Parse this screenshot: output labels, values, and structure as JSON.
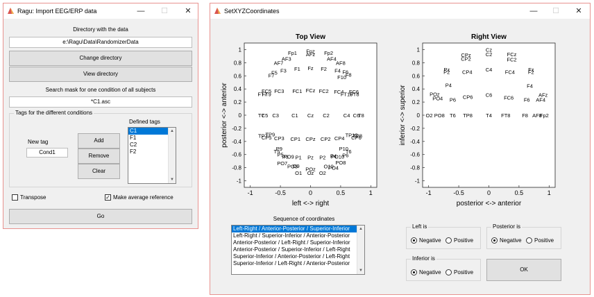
{
  "win1": {
    "title": "Ragu: Import EEG/ERP data",
    "directory_label": "Directory with the data",
    "directory_value": "e:\\Ragu\\Data\\RandomizerData",
    "change_directory": "Change directory",
    "view_directory": "View directory",
    "search_mask_label": "Search mask for one condition of all subjects",
    "search_mask_value": "*C1.asc",
    "tags_group_title": "Tags for the different conditions",
    "new_tag_label": "New tag",
    "new_tag_value": "Cond1",
    "add": "Add",
    "remove": "Remove",
    "clear": "Clear",
    "defined_tags_label": "Defined tags",
    "defined_tags": [
      "C1",
      "F1",
      "C2",
      "F2"
    ],
    "selected_tag": "C1",
    "transpose_label": "Transpose",
    "transpose_checked": false,
    "average_ref_label": "Make average reference",
    "average_ref_checked": true,
    "go": "Go"
  },
  "win2": {
    "title": "SetXYZCoordinates",
    "top_view": {
      "title": "Top View",
      "xlabel": "left <-> right",
      "ylabel": "posterior <-> anterior",
      "xticks": [
        "-1",
        "-0.5",
        "0",
        "0.5",
        "1"
      ],
      "yticks": [
        "1",
        "0.8",
        "0.6",
        "0.4",
        "0.2",
        "0",
        "-0.2",
        "-0.4",
        "-0.6",
        "-0.8",
        "-1"
      ],
      "electrodes": [
        [
          "Fp1",
          -0.3,
          0.95
        ],
        [
          "Fpz",
          0,
          0.98
        ],
        [
          "Fp2",
          0.3,
          0.95
        ],
        [
          "AFz",
          0,
          0.93
        ],
        [
          "AF7",
          -0.53,
          0.8
        ],
        [
          "AF3",
          -0.4,
          0.86
        ],
        [
          "AF4",
          0.35,
          0.86
        ],
        [
          "AF8",
          0.5,
          0.8
        ],
        [
          "F7",
          -0.65,
          0.61
        ],
        [
          "F5",
          -0.6,
          0.65
        ],
        [
          "F3",
          -0.45,
          0.68
        ],
        [
          "F1",
          -0.22,
          0.71
        ],
        [
          "Fz",
          0,
          0.72
        ],
        [
          "F2",
          0.22,
          0.71
        ],
        [
          "F4",
          0.45,
          0.68
        ],
        [
          "F6",
          0.58,
          0.66
        ],
        [
          "F8",
          0.63,
          0.62
        ],
        [
          "F10",
          0.52,
          0.58
        ],
        [
          "FC5",
          -0.73,
          0.37
        ],
        [
          "FC3",
          -0.52,
          0.37
        ],
        [
          "FC1",
          -0.22,
          0.37
        ],
        [
          "FCz",
          0,
          0.38
        ],
        [
          "FC2",
          0.22,
          0.37
        ],
        [
          "FC4",
          0.47,
          0.36
        ],
        [
          "FC6",
          0.72,
          0.36
        ],
        [
          "FT7",
          -0.8,
          0.32
        ],
        [
          "FT9",
          -0.73,
          0.32
        ],
        [
          "FT10",
          0.6,
          0.32
        ],
        [
          "FT8",
          0.73,
          0.32
        ],
        [
          "T7",
          -0.82,
          0
        ],
        [
          "C5",
          -0.76,
          0
        ],
        [
          "C3",
          -0.58,
          0
        ],
        [
          "C1",
          -0.26,
          0
        ],
        [
          "Cz",
          0,
          0
        ],
        [
          "C2",
          0.26,
          0
        ],
        [
          "C4",
          0.6,
          0
        ],
        [
          "C6",
          0.76,
          0
        ],
        [
          "T8",
          0.84,
          0
        ],
        [
          "TP7",
          -0.79,
          -0.31
        ],
        [
          "CP5",
          -0.73,
          -0.34
        ],
        [
          "TP9",
          -0.67,
          -0.29
        ],
        [
          "CP3",
          -0.52,
          -0.35
        ],
        [
          "CP1",
          -0.25,
          -0.36
        ],
        [
          "CPz",
          0,
          -0.36
        ],
        [
          "CP2",
          0.25,
          -0.36
        ],
        [
          "CP4",
          0.48,
          -0.35
        ],
        [
          "CP6",
          0.76,
          -0.34
        ],
        [
          "TP10",
          0.68,
          -0.3
        ],
        [
          "TP8",
          0.78,
          -0.31
        ],
        [
          "T5",
          -0.56,
          -0.55
        ],
        [
          "P9",
          -0.52,
          -0.51
        ],
        [
          "P5",
          -0.5,
          -0.6
        ],
        [
          "P3",
          -0.42,
          -0.63
        ],
        [
          "P1",
          -0.2,
          -0.64
        ],
        [
          "Pz",
          0,
          -0.64
        ],
        [
          "P2",
          0.2,
          -0.64
        ],
        [
          "P4",
          0.38,
          -0.62
        ],
        [
          "P6",
          0.58,
          -0.61
        ],
        [
          "T6",
          0.63,
          -0.55
        ],
        [
          "P10",
          0.55,
          -0.51
        ],
        [
          "PO9",
          -0.36,
          -0.63
        ],
        [
          "PO7",
          -0.47,
          -0.73
        ],
        [
          "PO3",
          -0.3,
          -0.78
        ],
        [
          "O9",
          -0.24,
          -0.77
        ],
        [
          "O1",
          -0.2,
          -0.88
        ],
        [
          "POz",
          0,
          -0.82
        ],
        [
          "Oz",
          0,
          -0.88
        ],
        [
          "O10",
          0.3,
          -0.78
        ],
        [
          "PO4",
          0.38,
          -0.8
        ],
        [
          "PO8",
          0.5,
          -0.72
        ],
        [
          "O2",
          0.2,
          -0.88
        ],
        [
          "PO10",
          0.45,
          -0.63
        ]
      ]
    },
    "right_view": {
      "title": "Right View",
      "xlabel": "posterior <-> anterior",
      "ylabel": "inferior <-> superior",
      "xticks": [
        "-1",
        "-0.5",
        "0",
        "0.5",
        "1"
      ],
      "yticks": [
        "1",
        "0.8",
        "0.6",
        "0.4",
        "0.2",
        "0",
        "-0.2",
        "-0.4",
        "-0.6",
        "-0.8",
        "-1"
      ],
      "electrodes": [
        [
          "Cz",
          0,
          1
        ],
        [
          "C2",
          0,
          0.93
        ],
        [
          "CPz",
          -0.38,
          0.92
        ],
        [
          "FCz",
          0.38,
          0.93
        ],
        [
          "CP2",
          -0.38,
          0.86
        ],
        [
          "FC2",
          0.38,
          0.85
        ],
        [
          "Pz",
          -0.7,
          0.7
        ],
        [
          "P2",
          -0.7,
          0.66
        ],
        [
          "CP4",
          -0.36,
          0.66
        ],
        [
          "C4",
          0,
          0.7
        ],
        [
          "FC4",
          0.35,
          0.66
        ],
        [
          "Fz",
          0.7,
          0.7
        ],
        [
          "F2",
          0.7,
          0.66
        ],
        [
          "P4",
          -0.67,
          0.46
        ],
        [
          "F4",
          0.68,
          0.45
        ],
        [
          "POz",
          -0.9,
          0.32
        ],
        [
          "PO4",
          -0.85,
          0.26
        ],
        [
          "P6",
          -0.6,
          0.24
        ],
        [
          "CP6",
          -0.35,
          0.28
        ],
        [
          "C6",
          0,
          0.31
        ],
        [
          "FC6",
          0.33,
          0.27
        ],
        [
          "F6",
          0.63,
          0.24
        ],
        [
          "AFz",
          0.9,
          0.31
        ],
        [
          "AF4",
          0.86,
          0.24
        ],
        [
          "O2",
          -0.99,
          0
        ],
        [
          "PO8",
          -0.82,
          0
        ],
        [
          "T6",
          -0.6,
          0
        ],
        [
          "TP8",
          -0.35,
          0
        ],
        [
          "T4",
          0,
          0
        ],
        [
          "FT8",
          0.28,
          0
        ],
        [
          "F8",
          0.6,
          0
        ],
        [
          "AF8",
          0.8,
          0
        ],
        [
          "Fp2",
          0.92,
          0
        ]
      ]
    },
    "sequence_label": "Sequence of coordinates",
    "sequences": [
      "Left-Right / Anterior-Posterior / Superior-Inferior",
      "Left-Right / Superior-Inferior / Anterior-Posterior",
      "Anterior-Posterior / Left-Right / Superior-Inferior",
      "Anterior-Posterior / Superior-Inferior / Left-Right",
      "Superior-Inferior / Anterior-Posterior / Left-Right",
      "Superior-Inferior / Left-Right / Anterior-Posterior"
    ],
    "selected_sequence": 0,
    "left_is": {
      "title": "Left is",
      "negative": "Negative",
      "positive": "Positive",
      "selected": "negative"
    },
    "posterior_is": {
      "title": "Posterior is",
      "negative": "Negative",
      "positive": "Positive",
      "selected": "negative"
    },
    "inferior_is": {
      "title": "Inferior is",
      "negative": "Negative",
      "positive": "Positive",
      "selected": "negative"
    },
    "ok": "OK"
  }
}
